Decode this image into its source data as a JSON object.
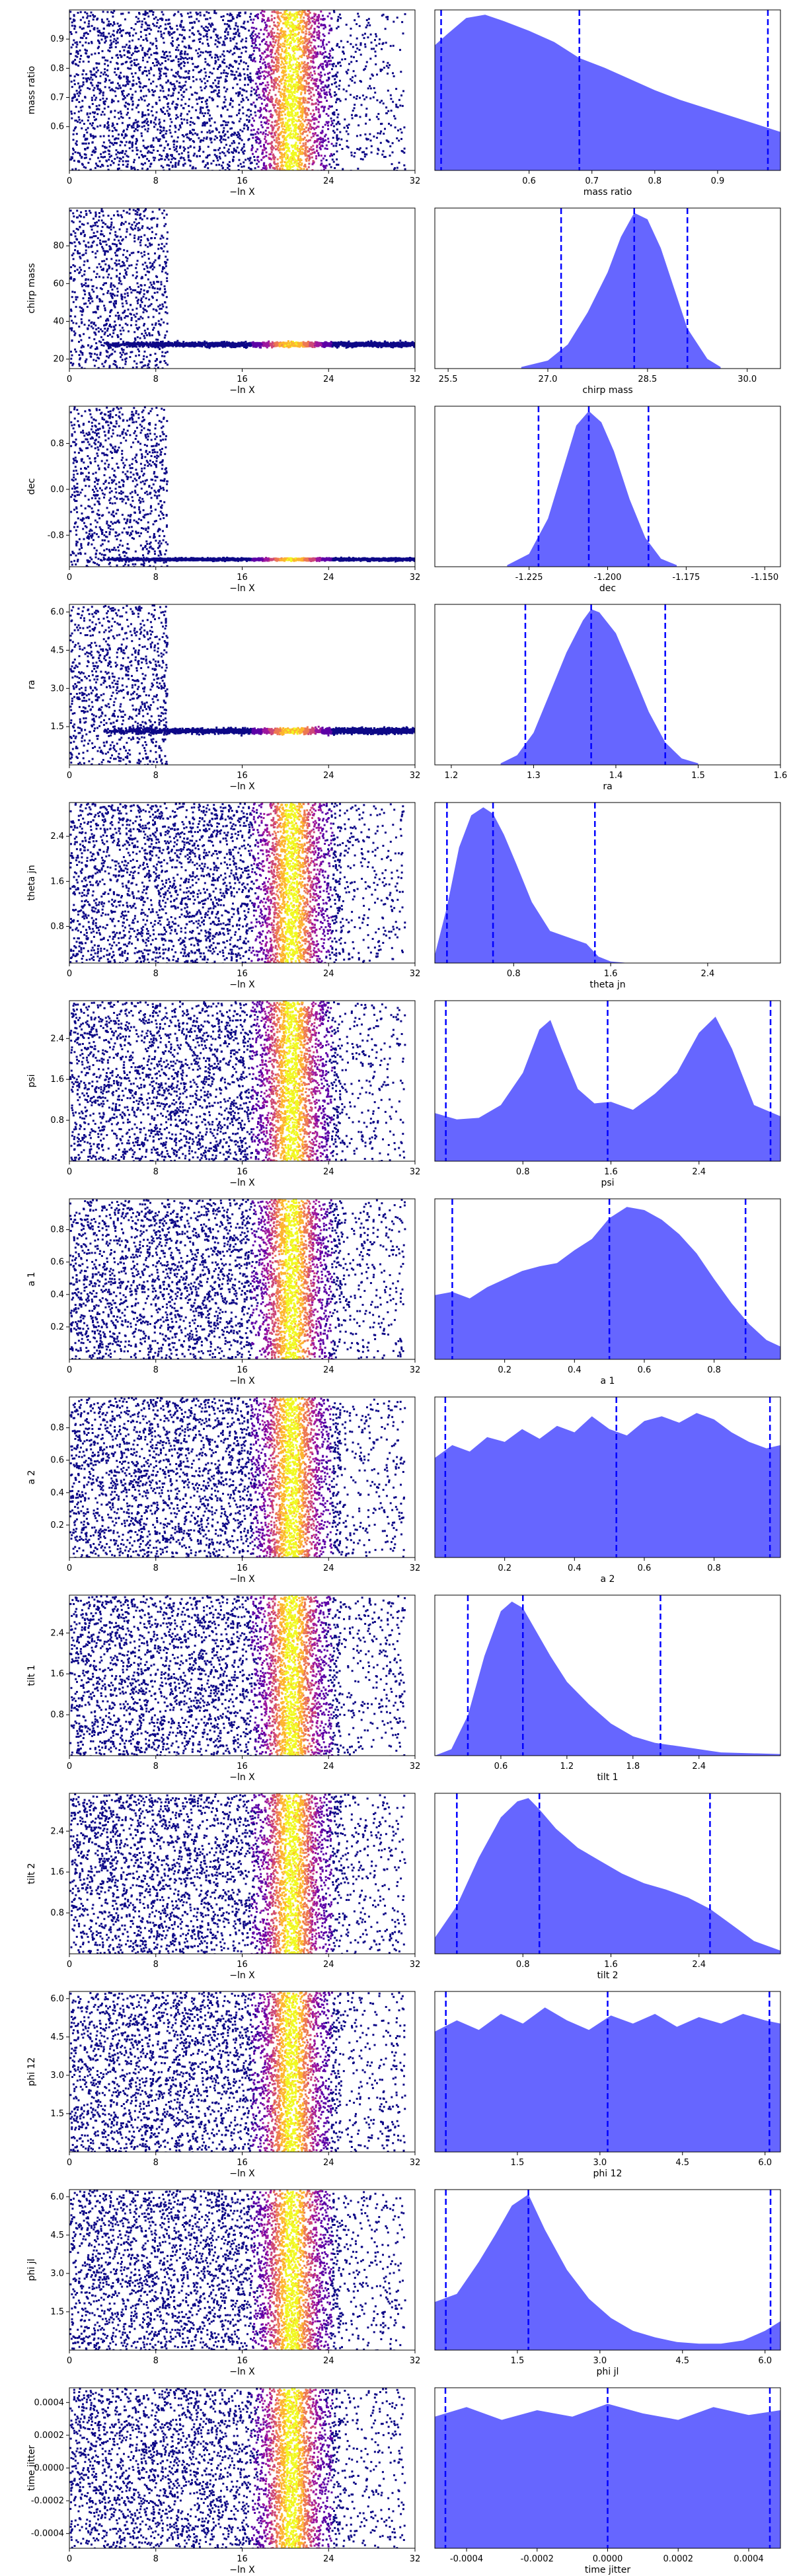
{
  "chart_data": {
    "type": "trace-and-posterior-grid",
    "trace_xlabel": "−ln X",
    "trace_xlim": [
      0,
      32
    ],
    "trace_xticks": [
      "0",
      "8",
      "16",
      "24",
      "32"
    ],
    "trace_colormap": [
      "#0d0887",
      "#5c01a6",
      "#9c179e",
      "#cc4778",
      "#ed7953",
      "#fdb42f",
      "#f0f921"
    ],
    "posterior_color": "#6666ff",
    "quantile_line_color": "#0000ff",
    "rows": [
      {
        "param": "mass ratio",
        "trace_ylim": [
          0.45,
          1.0
        ],
        "trace_yticks": [
          "0.6",
          "0.7",
          "0.8",
          "0.9"
        ],
        "post_xlim": [
          0.45,
          1.0
        ],
        "post_xticks": [
          "0.6",
          "0.7",
          "0.8",
          "0.9"
        ],
        "quantiles": [
          0.46,
          0.68,
          0.98
        ],
        "density_x": [
          0.45,
          0.47,
          0.5,
          0.53,
          0.56,
          0.6,
          0.64,
          0.68,
          0.72,
          0.76,
          0.8,
          0.84,
          0.88,
          0.92,
          0.96,
          1.0
        ],
        "density_y": [
          0.78,
          0.85,
          0.95,
          0.97,
          0.93,
          0.87,
          0.8,
          0.7,
          0.64,
          0.57,
          0.5,
          0.44,
          0.39,
          0.34,
          0.29,
          0.24
        ]
      },
      {
        "param": "chirp mass",
        "trace_ylim": [
          15,
          100
        ],
        "trace_yticks": [
          "20",
          "40",
          "60",
          "80"
        ],
        "post_xlim": [
          25.3,
          30.5
        ],
        "post_xticks": [
          "25.5",
          "27.0",
          "28.5",
          "30.0"
        ],
        "quantiles": [
          27.2,
          28.3,
          29.1
        ],
        "density_x": [
          26.6,
          27.0,
          27.3,
          27.6,
          27.9,
          28.1,
          28.3,
          28.5,
          28.7,
          28.9,
          29.1,
          29.4,
          29.6
        ],
        "density_y": [
          0.01,
          0.05,
          0.15,
          0.35,
          0.6,
          0.82,
          0.97,
          0.93,
          0.75,
          0.5,
          0.25,
          0.06,
          0.01
        ]
      },
      {
        "param": "dec",
        "trace_ylim": [
          -1.35,
          1.45
        ],
        "trace_yticks": [
          "-0.8",
          "0.0",
          "0.8"
        ],
        "post_xlim": [
          -1.255,
          -1.145
        ],
        "post_xticks": [
          "-1.225",
          "-1.200",
          "-1.175",
          "-1.150"
        ],
        "quantiles": [
          -1.222,
          -1.206,
          -1.187
        ],
        "density_x": [
          -1.232,
          -1.225,
          -1.219,
          -1.214,
          -1.21,
          -1.206,
          -1.202,
          -1.198,
          -1.193,
          -1.188,
          -1.183,
          -1.178
        ],
        "density_y": [
          0.01,
          0.08,
          0.3,
          0.62,
          0.88,
          0.97,
          0.9,
          0.72,
          0.42,
          0.18,
          0.05,
          0.01
        ]
      },
      {
        "param": "ra",
        "trace_ylim": [
          0.0,
          6.3
        ],
        "trace_yticks": [
          "1.5",
          "3.0",
          "4.5",
          "6.0"
        ],
        "post_xlim": [
          1.18,
          1.6
        ],
        "post_xticks": [
          "1.2",
          "1.3",
          "1.4",
          "1.5",
          "1.6"
        ],
        "quantiles": [
          1.29,
          1.37,
          1.46
        ],
        "density_x": [
          1.26,
          1.28,
          1.3,
          1.32,
          1.34,
          1.36,
          1.37,
          1.38,
          1.4,
          1.42,
          1.44,
          1.46,
          1.48,
          1.5
        ],
        "density_y": [
          0.01,
          0.06,
          0.2,
          0.45,
          0.7,
          0.9,
          0.97,
          0.95,
          0.82,
          0.58,
          0.33,
          0.14,
          0.04,
          0.01
        ]
      },
      {
        "param": "theta jn",
        "trace_ylim": [
          0.15,
          3.0
        ],
        "trace_yticks": [
          "0.8",
          "1.6",
          "2.4"
        ],
        "post_xlim": [
          0.15,
          3.0
        ],
        "post_xticks": [
          "0.8",
          "1.6",
          "2.4"
        ],
        "quantiles": [
          0.25,
          0.63,
          1.47
        ],
        "density_x": [
          0.15,
          0.25,
          0.35,
          0.45,
          0.55,
          0.63,
          0.72,
          0.82,
          0.95,
          1.1,
          1.25,
          1.4,
          1.5,
          1.6,
          1.75
        ],
        "density_y": [
          0.05,
          0.35,
          0.72,
          0.92,
          0.97,
          0.93,
          0.8,
          0.62,
          0.38,
          0.2,
          0.16,
          0.12,
          0.04,
          0.01,
          0.0
        ]
      },
      {
        "param": "psi",
        "trace_ylim": [
          0.0,
          3.14
        ],
        "trace_yticks": [
          "0.8",
          "1.6",
          "2.4"
        ],
        "post_xlim": [
          0.0,
          3.14
        ],
        "post_xticks": [
          "0.8",
          "1.6",
          "2.4"
        ],
        "quantiles": [
          0.1,
          1.57,
          3.05
        ],
        "density_x": [
          0.0,
          0.2,
          0.4,
          0.6,
          0.8,
          0.95,
          1.05,
          1.15,
          1.3,
          1.45,
          1.6,
          1.8,
          2.0,
          2.2,
          2.4,
          2.55,
          2.7,
          2.9,
          3.14
        ],
        "density_y": [
          0.3,
          0.26,
          0.27,
          0.35,
          0.55,
          0.82,
          0.88,
          0.7,
          0.45,
          0.36,
          0.37,
          0.32,
          0.42,
          0.55,
          0.8,
          0.9,
          0.7,
          0.35,
          0.28
        ]
      },
      {
        "param": "a 1",
        "trace_ylim": [
          0.0,
          0.99
        ],
        "trace_yticks": [
          "0.2",
          "0.4",
          "0.6",
          "0.8"
        ],
        "post_xlim": [
          0.0,
          0.99
        ],
        "post_xticks": [
          "0.2",
          "0.4",
          "0.6",
          "0.8"
        ],
        "quantiles": [
          0.05,
          0.5,
          0.89
        ],
        "density_x": [
          0.0,
          0.05,
          0.1,
          0.15,
          0.2,
          0.25,
          0.3,
          0.35,
          0.4,
          0.45,
          0.5,
          0.55,
          0.6,
          0.65,
          0.7,
          0.75,
          0.8,
          0.85,
          0.9,
          0.95,
          0.99
        ],
        "density_y": [
          0.4,
          0.42,
          0.38,
          0.45,
          0.5,
          0.55,
          0.58,
          0.6,
          0.68,
          0.75,
          0.88,
          0.95,
          0.93,
          0.87,
          0.78,
          0.66,
          0.5,
          0.35,
          0.22,
          0.12,
          0.08
        ]
      },
      {
        "param": "a 2",
        "trace_ylim": [
          0.0,
          0.99
        ],
        "trace_yticks": [
          "0.2",
          "0.4",
          "0.6",
          "0.8"
        ],
        "post_xlim": [
          0.0,
          0.99
        ],
        "post_xticks": [
          "0.2",
          "0.4",
          "0.6",
          "0.8"
        ],
        "quantiles": [
          0.03,
          0.52,
          0.96
        ],
        "density_x": [
          0.0,
          0.05,
          0.1,
          0.15,
          0.2,
          0.25,
          0.3,
          0.35,
          0.4,
          0.45,
          0.5,
          0.55,
          0.6,
          0.65,
          0.7,
          0.75,
          0.8,
          0.85,
          0.9,
          0.95,
          0.99
        ],
        "density_y": [
          0.62,
          0.7,
          0.66,
          0.75,
          0.72,
          0.8,
          0.74,
          0.82,
          0.78,
          0.88,
          0.8,
          0.76,
          0.85,
          0.88,
          0.84,
          0.9,
          0.86,
          0.78,
          0.72,
          0.68,
          0.7
        ]
      },
      {
        "param": "tilt 1",
        "trace_ylim": [
          0.0,
          3.14
        ],
        "trace_yticks": [
          "0.8",
          "1.6",
          "2.4"
        ],
        "post_xlim": [
          0.0,
          3.14
        ],
        "post_xticks": [
          "0.6",
          "1.2",
          "1.8",
          "2.4"
        ],
        "quantiles": [
          0.3,
          0.8,
          2.05
        ],
        "density_x": [
          0.0,
          0.15,
          0.3,
          0.45,
          0.6,
          0.7,
          0.8,
          0.9,
          1.05,
          1.2,
          1.4,
          1.6,
          1.8,
          2.0,
          2.3,
          2.6,
          3.14
        ],
        "density_y": [
          0.0,
          0.04,
          0.25,
          0.62,
          0.9,
          0.96,
          0.92,
          0.8,
          0.62,
          0.46,
          0.32,
          0.2,
          0.12,
          0.08,
          0.05,
          0.02,
          0.01
        ]
      },
      {
        "param": "tilt 2",
        "trace_ylim": [
          0.0,
          3.14
        ],
        "trace_yticks": [
          "0.8",
          "1.6",
          "2.4"
        ],
        "post_xlim": [
          0.0,
          3.14
        ],
        "post_xticks": [
          "0.8",
          "1.6",
          "2.4"
        ],
        "quantiles": [
          0.2,
          0.95,
          2.5
        ],
        "density_x": [
          0.0,
          0.2,
          0.4,
          0.6,
          0.75,
          0.85,
          0.95,
          1.1,
          1.3,
          1.5,
          1.7,
          1.9,
          2.1,
          2.3,
          2.5,
          2.7,
          2.9,
          3.14
        ],
        "density_y": [
          0.1,
          0.3,
          0.6,
          0.85,
          0.95,
          0.97,
          0.9,
          0.78,
          0.66,
          0.58,
          0.5,
          0.44,
          0.4,
          0.35,
          0.28,
          0.18,
          0.08,
          0.02
        ]
      },
      {
        "param": "phi 12",
        "trace_ylim": [
          0.0,
          6.28
        ],
        "trace_yticks": [
          "1.5",
          "3.0",
          "4.5",
          "6.0"
        ],
        "post_xlim": [
          0.0,
          6.28
        ],
        "post_xticks": [
          "1.5",
          "3.0",
          "4.5",
          "6.0"
        ],
        "quantiles": [
          0.2,
          3.14,
          6.08
        ],
        "density_x": [
          0.0,
          0.4,
          0.8,
          1.2,
          1.6,
          2.0,
          2.4,
          2.8,
          3.2,
          3.6,
          4.0,
          4.4,
          4.8,
          5.2,
          5.6,
          6.0,
          6.28
        ],
        "density_y": [
          0.75,
          0.82,
          0.76,
          0.86,
          0.8,
          0.9,
          0.82,
          0.76,
          0.85,
          0.8,
          0.86,
          0.78,
          0.84,
          0.8,
          0.86,
          0.82,
          0.8
        ]
      },
      {
        "param": "phi jl",
        "trace_ylim": [
          0.0,
          6.28
        ],
        "trace_yticks": [
          "1.5",
          "3.0",
          "4.5",
          "6.0"
        ],
        "post_xlim": [
          0.0,
          6.28
        ],
        "post_xticks": [
          "1.5",
          "3.0",
          "4.5",
          "6.0"
        ],
        "quantiles": [
          0.2,
          1.7,
          6.1
        ],
        "density_x": [
          0.0,
          0.4,
          0.8,
          1.1,
          1.4,
          1.7,
          2.0,
          2.4,
          2.8,
          3.2,
          3.6,
          4.0,
          4.4,
          4.8,
          5.2,
          5.6,
          6.0,
          6.28
        ],
        "density_y": [
          0.3,
          0.35,
          0.55,
          0.72,
          0.9,
          0.97,
          0.75,
          0.5,
          0.32,
          0.2,
          0.12,
          0.08,
          0.05,
          0.04,
          0.04,
          0.06,
          0.12,
          0.18
        ]
      },
      {
        "param": "time jitter",
        "trace_ylim": [
          -0.00049,
          0.00049
        ],
        "trace_yticks": [
          "-0.0004",
          "-0.0002",
          "0.0000",
          "0.0002",
          "0.0004"
        ],
        "post_xlim": [
          -0.00049,
          0.00049
        ],
        "post_xticks": [
          "-0.0004",
          "-0.0002",
          "0.0000",
          "0.0002",
          "0.0004"
        ],
        "quantiles": [
          -0.00046,
          0.0,
          0.00046
        ],
        "density_x": [
          -0.00049,
          -0.0004,
          -0.0003,
          -0.0002,
          -0.0001,
          0.0,
          0.0001,
          0.0002,
          0.0003,
          0.0004,
          0.00049
        ],
        "density_y": [
          0.82,
          0.88,
          0.8,
          0.86,
          0.82,
          0.9,
          0.84,
          0.8,
          0.88,
          0.83,
          0.86
        ]
      }
    ]
  }
}
